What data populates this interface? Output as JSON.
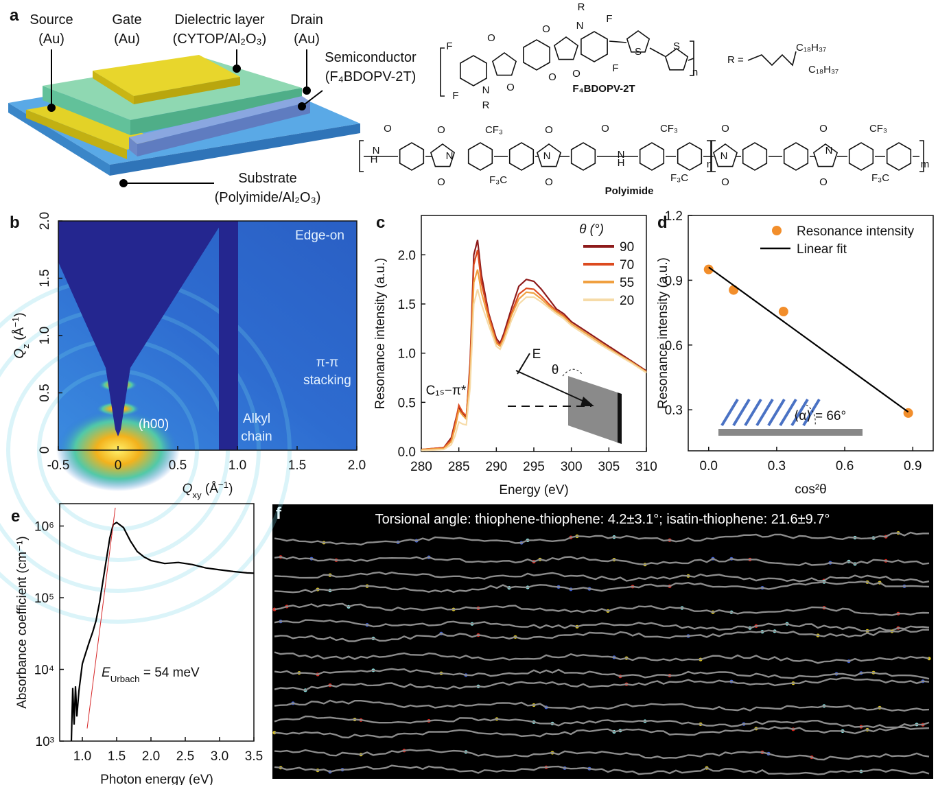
{
  "panel_labels": [
    "a",
    "b",
    "c",
    "d",
    "e",
    "f"
  ],
  "device": {
    "labels": [
      [
        "Source",
        "(Au)"
      ],
      [
        "Gate",
        "(Au)"
      ],
      [
        "Dielectric layer",
        "(CYTOP/Al₂O₃)"
      ],
      [
        "Drain",
        "(Au)"
      ],
      [
        "Semiconductor",
        "(F₄BDOPV-2T)"
      ],
      [
        "Substrate",
        "(Polyimide/Al₂O₃)"
      ]
    ]
  },
  "structures": {
    "f4bdopv": {
      "name": "F₄BDOPV-2T",
      "atoms": [
        "R",
        "N",
        "O",
        "F",
        "O",
        "F",
        "S",
        "S",
        "F",
        "O",
        "O",
        "O",
        "N",
        "F",
        "R",
        "n"
      ],
      "r_group": "R =",
      "chains": [
        "C₁₈H₃₇",
        "C₁₈H₃₇"
      ]
    },
    "polyimide": {
      "name": "Polyimide",
      "atoms": [
        "O",
        "N",
        "H",
        "O",
        "N",
        "O",
        "CF₃",
        "F₃C",
        "O",
        "N",
        "O",
        "O",
        "N",
        "H",
        "CF₃",
        "F₃C",
        "n",
        "O",
        "N",
        "O",
        "O",
        "N",
        "O",
        "CF₃",
        "F₃C",
        "m"
      ]
    }
  },
  "chart_data": [
    {
      "type": "image",
      "xlabel": [
        {
          "t": "Q",
          "italic": true
        },
        {
          "t": "xy",
          "sub": true
        },
        {
          "t": " (Å"
        },
        {
          "t": "−1",
          "sup": true
        },
        {
          "t": ")"
        }
      ],
      "ylabel": [
        {
          "t": "Q",
          "italic": true
        },
        {
          "t": "z",
          "sub": true
        },
        {
          "t": " (Å"
        },
        {
          "t": "−1",
          "sup": true
        },
        {
          "t": ")"
        }
      ],
      "xlim": [
        -0.5,
        2.0
      ],
      "ylim": [
        0,
        2.0
      ],
      "xticks": [
        -0.5,
        0,
        0.5,
        {
          "value": 1,
          "label": "1.0"
        },
        1.5,
        {
          "value": 2,
          "label": "2.0"
        }
      ],
      "yticks": [
        0,
        0.5,
        {
          "value": 1,
          "label": "1.0"
        },
        1.5,
        {
          "value": 2,
          "label": "2.0"
        }
      ],
      "annotations": [
        "Edge-on",
        "π-π",
        "stacking",
        "(h00)",
        "Alkyl",
        "chain"
      ]
    },
    {
      "type": "line",
      "xlabel": "Energy (eV)",
      "ylabel": "Resonance intensity (a.u.)",
      "legend_title": "θ (°)",
      "x": [
        280,
        283,
        284,
        284.5,
        285,
        285.5,
        286,
        286.5,
        287,
        287.5,
        288,
        289,
        290,
        290.5,
        291,
        292,
        293,
        294,
        295,
        296,
        297,
        298,
        299,
        300,
        302,
        304,
        306,
        308,
        310
      ],
      "series": [
        {
          "name": "90",
          "color": "#8e1b1b",
          "values": [
            0.02,
            0.04,
            0.14,
            0.3,
            0.45,
            0.38,
            0.35,
            0.9,
            2.0,
            2.15,
            1.8,
            1.4,
            1.15,
            1.1,
            1.2,
            1.45,
            1.68,
            1.75,
            1.73,
            1.65,
            1.55,
            1.45,
            1.4,
            1.32,
            1.22,
            1.12,
            1.02,
            0.92,
            0.82
          ]
        },
        {
          "name": "70",
          "color": "#dc4a1f",
          "values": [
            0.02,
            0.04,
            0.12,
            0.28,
            0.47,
            0.4,
            0.36,
            0.85,
            1.9,
            2.05,
            1.72,
            1.38,
            1.12,
            1.08,
            1.17,
            1.4,
            1.6,
            1.66,
            1.65,
            1.58,
            1.5,
            1.43,
            1.38,
            1.3,
            1.2,
            1.1,
            1.0,
            0.91,
            0.81
          ]
        },
        {
          "name": "55",
          "color": "#f0a040",
          "values": [
            0.02,
            0.03,
            0.1,
            0.24,
            0.42,
            0.37,
            0.33,
            0.78,
            1.72,
            1.85,
            1.62,
            1.34,
            1.1,
            1.07,
            1.15,
            1.38,
            1.55,
            1.62,
            1.61,
            1.55,
            1.48,
            1.42,
            1.37,
            1.3,
            1.2,
            1.1,
            1.0,
            0.91,
            0.81
          ]
        },
        {
          "name": "20",
          "color": "#f6dba8",
          "values": [
            0.01,
            0.02,
            0.07,
            0.16,
            0.3,
            0.28,
            0.27,
            0.65,
            1.5,
            1.65,
            1.5,
            1.28,
            1.07,
            1.04,
            1.12,
            1.33,
            1.5,
            1.57,
            1.57,
            1.52,
            1.46,
            1.4,
            1.35,
            1.28,
            1.18,
            1.08,
            0.99,
            0.9,
            0.8
          ]
        }
      ],
      "xlim": [
        280,
        310
      ],
      "ylim": [
        0,
        2.4
      ],
      "xticks": [
        280,
        285,
        290,
        295,
        300,
        305,
        310
      ],
      "yticks": [
        {
          "value": 0,
          "label": "0.0"
        },
        0.5,
        {
          "value": 1,
          "label": "1.0"
        },
        1.5,
        {
          "value": 2,
          "label": "2.0"
        }
      ],
      "annotations": [
        "C₁ₛ−π*",
        "E",
        "θ"
      ]
    },
    {
      "type": "scatter",
      "xlabel": "cos²θ",
      "ylabel": "Resonance intensity (a.u.)",
      "series": [
        {
          "name": "Resonance intensity",
          "type": "scatter",
          "color": "#f28e2b",
          "x": [
            0,
            0.11,
            0.33,
            0.88
          ],
          "values": [
            0.95,
            0.855,
            0.755,
            0.285
          ]
        },
        {
          "name": "Linear fit",
          "type": "line",
          "color": "#000000",
          "x": [
            0,
            0.88
          ],
          "values": [
            0.96,
            0.29
          ]
        }
      ],
      "xlim": [
        -0.09,
        0.99
      ],
      "ylim": [
        0.11,
        1.2
      ],
      "xticks": [
        {
          "value": 0,
          "label": "0.0"
        },
        0.3,
        0.6,
        0.9
      ],
      "yticks": [
        0.3,
        0.6,
        0.9,
        1.2
      ],
      "annotations": [
        "⟨α⟩ = 66°"
      ]
    },
    {
      "type": "line",
      "log_y": true,
      "xlabel": "Photon energy (eV)",
      "ylabel": "Absorbance coefficient (cm⁻¹)",
      "series": [
        {
          "color": "#000000",
          "x": [
            0.84,
            0.86,
            0.88,
            0.9,
            0.92,
            0.95,
            1.0,
            1.05,
            1.1,
            1.15,
            1.2,
            1.25,
            1.3,
            1.35,
            1.4,
            1.45,
            1.5,
            1.6,
            1.7,
            1.8,
            1.9,
            2.0,
            2.2,
            2.4,
            2.6,
            2.8,
            3.0,
            3.2,
            3.4,
            3.5
          ],
          "values": [
            1000,
            5500,
            1700,
            5800,
            2200,
            5000,
            12000,
            17000,
            24000,
            33000,
            48000,
            85000,
            170000,
            340000,
            680000,
            1050000,
            1120000,
            950000,
            620000,
            440000,
            370000,
            330000,
            300000,
            310000,
            290000,
            260000,
            245000,
            232000,
            222000,
            220000
          ]
        },
        {
          "color": "#d62728",
          "x": [
            1.07,
            1.48
          ],
          "values": [
            1500,
            1800000
          ]
        }
      ],
      "xlim": [
        0.67,
        3.5
      ],
      "ylim": [
        1000,
        2050000
      ],
      "xticks": [
        {
          "value": 1,
          "label": "1.0"
        },
        1.5,
        {
          "value": 2,
          "label": "2.0"
        },
        2.5,
        {
          "value": 3,
          "label": "3.0"
        },
        3.5
      ],
      "yticks": [
        {
          "value": 1000,
          "label": "10³"
        },
        {
          "value": 10000,
          "label": "10⁴"
        },
        {
          "value": 100000,
          "label": "10⁵"
        },
        {
          "value": 1000000,
          "label": "10⁶"
        }
      ],
      "annotations": [
        [
          {
            "t": "E",
            "italic": true
          },
          {
            "t": "Urbach",
            "sub": true
          },
          {
            "t": " = 54 meV"
          }
        ]
      ]
    }
  ],
  "simulation": {
    "title": "Torsional angle: thiophene-thiophene: 4.2±3.1°; isatin-thiophene: 21.6±9.7°"
  }
}
